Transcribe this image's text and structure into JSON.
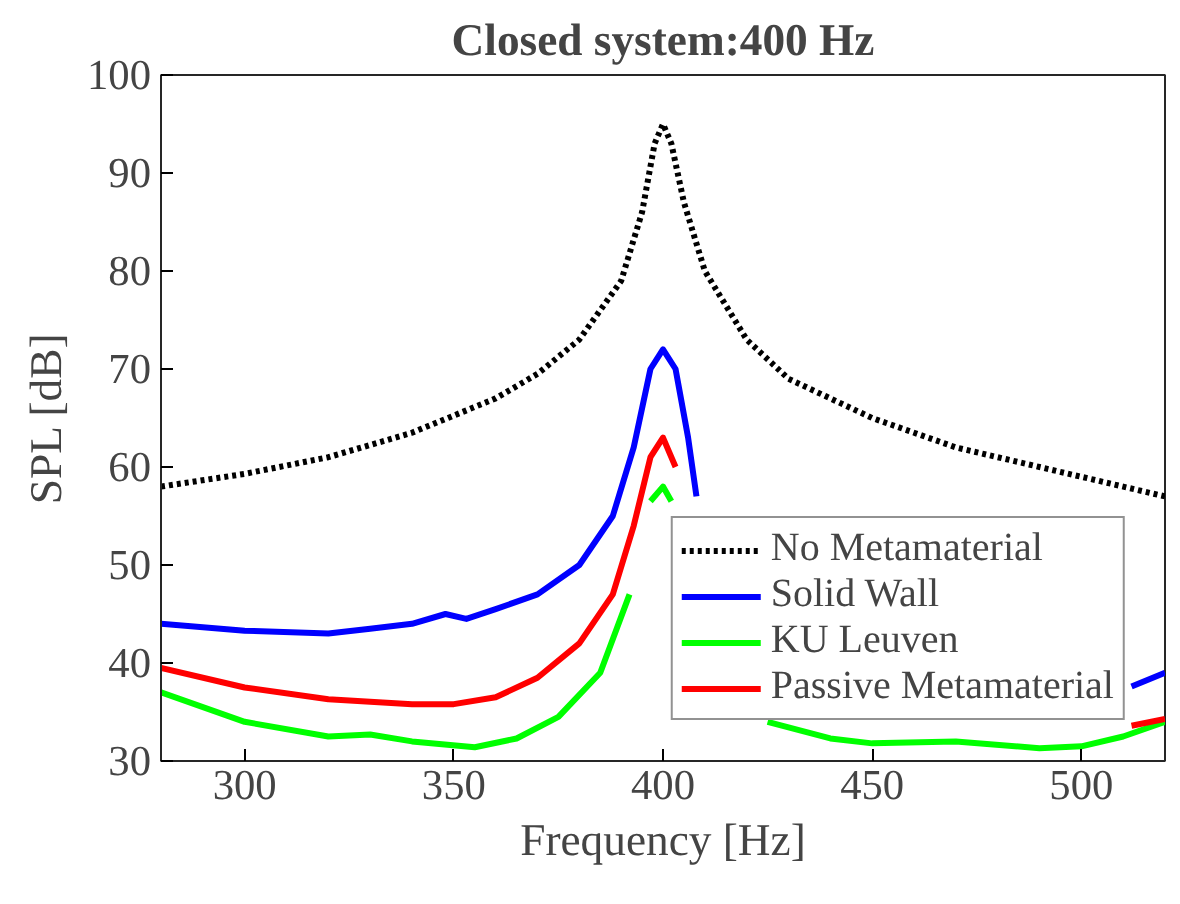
{
  "chart_data": {
    "type": "line",
    "title": "Closed system:400 Hz",
    "xlabel": "Frequency [Hz]",
    "ylabel": "SPL [dB]",
    "xlim": [
      280,
      520
    ],
    "ylim": [
      30,
      100
    ],
    "xticks": [
      300,
      350,
      400,
      450,
      500
    ],
    "yticks": [
      30,
      40,
      50,
      60,
      70,
      80,
      90,
      100
    ],
    "grid": false,
    "legend": "bottom right",
    "series": [
      {
        "name": "No Metamaterial",
        "color": "#000000",
        "line_style": "dotted",
        "x": [
          280,
          300,
          320,
          340,
          360,
          370,
          380,
          390,
          395,
          398,
          400,
          402,
          405,
          410,
          420,
          430,
          450,
          470,
          490,
          510,
          520
        ],
        "values": [
          58,
          59.3,
          61,
          63.5,
          67,
          69.5,
          73,
          79,
          86,
          93,
          95,
          93,
          87,
          80,
          73,
          69,
          65,
          62,
          60,
          58,
          57
        ]
      },
      {
        "name": "Solid Wall",
        "color": "#0000ff",
        "line_style": "solid",
        "x": [
          280,
          300,
          320,
          330,
          340,
          348,
          353,
          360,
          370,
          380,
          388,
          393,
          397,
          400,
          403,
          406,
          408,
          410,
          505,
          512,
          520
        ],
        "values": [
          44,
          43.3,
          43,
          43.5,
          44,
          45,
          44.5,
          45.5,
          47,
          50,
          55,
          62,
          70,
          72,
          70,
          63,
          57,
          null,
          null,
          37.6,
          39
        ]
      },
      {
        "name": "KU Leuven",
        "color": "#00ff00",
        "line_style": "solid",
        "x": [
          280,
          300,
          320,
          330,
          340,
          355,
          365,
          375,
          385,
          392,
          394,
          397,
          400,
          402,
          404,
          420,
          425,
          440,
          450,
          470,
          490,
          500,
          510,
          520
        ],
        "values": [
          37,
          34,
          32.5,
          32.7,
          32,
          31.4,
          32.3,
          34.5,
          39,
          47,
          null,
          56.5,
          58,
          56.5,
          null,
          null,
          34,
          32.3,
          31.8,
          32,
          31.3,
          31.5,
          32.5,
          34
        ]
      },
      {
        "name": "Passive Metamaterial",
        "color": "#ff0000",
        "line_style": "solid",
        "x": [
          280,
          300,
          320,
          340,
          350,
          360,
          370,
          380,
          388,
          393,
          397,
          400,
          403,
          405,
          508,
          512,
          520
        ],
        "values": [
          39.5,
          37.5,
          36.3,
          35.8,
          35.8,
          36.5,
          38.5,
          42,
          47,
          54,
          61,
          63,
          60,
          null,
          null,
          33.6,
          34.3
        ]
      }
    ]
  }
}
